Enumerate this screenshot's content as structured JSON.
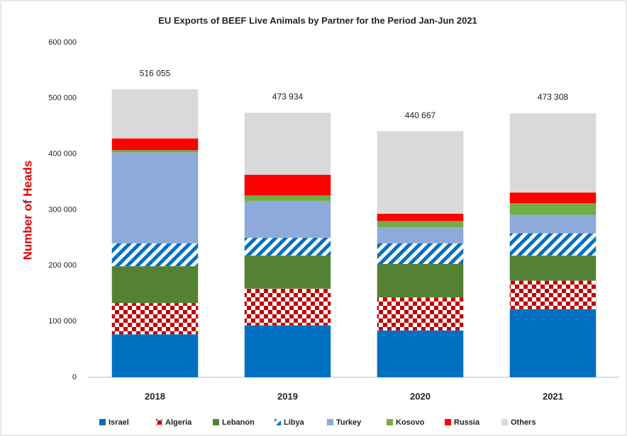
{
  "chart_data": {
    "type": "stacked_bar",
    "title": "EU Exports of BEEF Live Animals by Partner for the Period Jan-Jun 2021",
    "y_label": "Number of Heads",
    "categories": [
      "2018",
      "2019",
      "2020",
      "2021"
    ],
    "series": [
      {
        "name": "Israel",
        "color": "#0070c0",
        "values": [
          77000,
          93000,
          84000,
          122000
        ]
      },
      {
        "name": "Algeria",
        "color": "#c00000",
        "pattern": "checker",
        "values": [
          56000,
          66000,
          59000,
          51000
        ]
      },
      {
        "name": "Lebanon",
        "color": "#548235",
        "values": [
          66000,
          59000,
          60000,
          45000
        ]
      },
      {
        "name": "Libya",
        "color": "#0070c0",
        "pattern": "stripes",
        "values": [
          41000,
          32000,
          37000,
          40000
        ]
      },
      {
        "name": "Turkey",
        "color": "#8eaadb",
        "values": [
          163000,
          66000,
          29000,
          33000
        ]
      },
      {
        "name": "Kosovo",
        "color": "#70ad47",
        "values": [
          4000,
          10000,
          11000,
          21000
        ]
      },
      {
        "name": "Russia",
        "color": "#ff0000",
        "values": [
          21000,
          37000,
          13000,
          19000
        ]
      },
      {
        "name": "Others",
        "color": "#d9d9d9",
        "values": [
          88000,
          111000,
          148000,
          142000
        ]
      }
    ],
    "totals": {
      "values": [
        516055,
        473934,
        440667,
        473308
      ],
      "value_labels": [
        "516 055",
        "473 934",
        "440 667",
        "473 308"
      ]
    },
    "ylim": [
      0,
      600000
    ],
    "yticks": [
      0,
      {
        "value": 100000,
        "label": "100 000"
      },
      {
        "value": 200000,
        "label": "200 000"
      },
      {
        "value": 300000,
        "label": "300 000"
      },
      {
        "value": 400000,
        "label": "400 000"
      },
      {
        "value": 500000,
        "label": "500 000"
      },
      {
        "value": 600000,
        "label": "600 000"
      }
    ],
    "grid": false,
    "legend": "bottom"
  }
}
